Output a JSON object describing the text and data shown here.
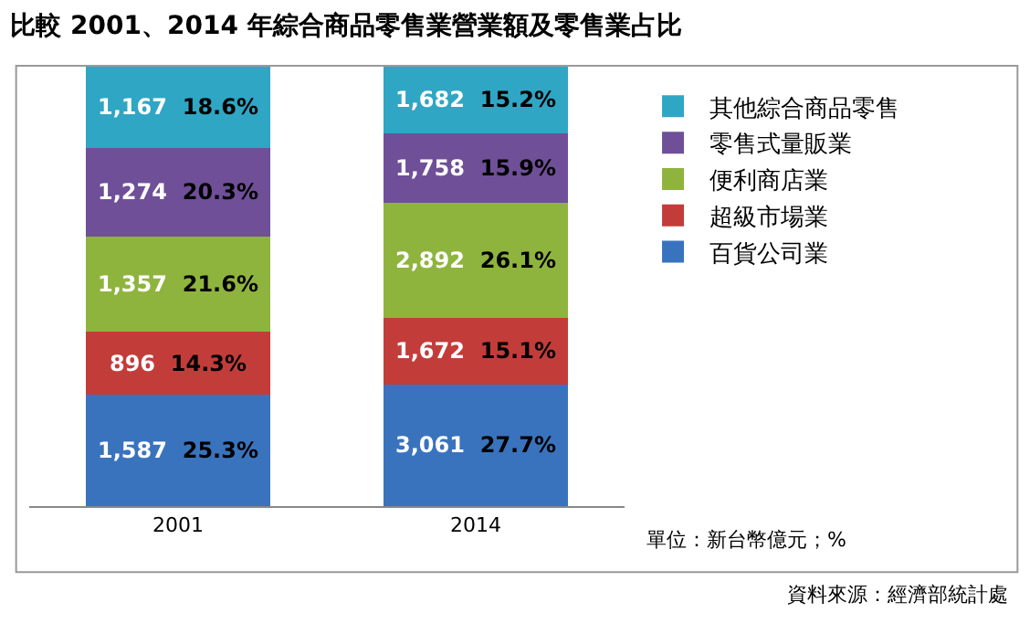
{
  "chart_data": {
    "type": "bar",
    "stacked": true,
    "title": "比較 2001、2014 年綜合商品零售業營業額及零售業占比",
    "categories": [
      "2001",
      "2014"
    ],
    "series": [
      {
        "name": "百貨公司業",
        "color": "#3a73bd",
        "values": [
          25.3,
          27.7
        ],
        "value_labels": [
          "1,587 25.3%",
          "3,061 27.7%"
        ]
      },
      {
        "name": "超級市場業",
        "color": "#c23d3a",
        "values": [
          14.3,
          15.1
        ],
        "value_labels": [
          "896 14.3%",
          "1,672 15.1%"
        ]
      },
      {
        "name": "便利商店業",
        "color": "#8fb43e",
        "values": [
          21.6,
          26.1
        ],
        "value_labels": [
          "1,357 21.6%",
          "2,892 26.1%"
        ]
      },
      {
        "name": "零售式量販業",
        "color": "#6f4f98",
        "values": [
          20.3,
          15.9
        ],
        "value_labels": [
          "1,274 20.3%",
          "1,758 15.9%"
        ]
      },
      {
        "name": "其他綜合商品零售",
        "color": "#2fa6c4",
        "values": [
          18.6,
          15.2
        ],
        "value_labels": [
          "1,167 18.6%",
          "1,682 15.2%"
        ]
      }
    ],
    "ylim": [
      0,
      100.1
    ],
    "tick_labels": "x",
    "grid": false,
    "legend": "right",
    "annotations": [
      "單位：新台幣億元；%",
      "資料來源：經濟部統計處"
    ]
  }
}
